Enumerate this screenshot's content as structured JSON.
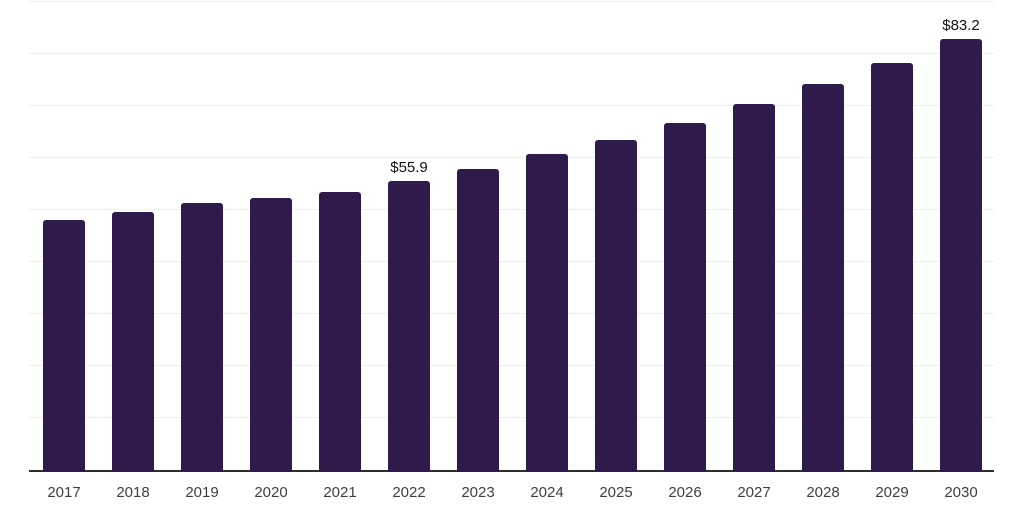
{
  "chart_data": {
    "type": "bar",
    "title": "",
    "xlabel": "",
    "ylabel": "",
    "categories": [
      "2017",
      "2018",
      "2019",
      "2020",
      "2021",
      "2022",
      "2023",
      "2024",
      "2025",
      "2026",
      "2027",
      "2028",
      "2029",
      "2030"
    ],
    "values": [
      48.3,
      50.0,
      51.7,
      52.6,
      53.7,
      55.9,
      58.1,
      61.1,
      63.7,
      67.1,
      70.7,
      74.6,
      78.5,
      83.2
    ],
    "value_labels": {
      "2022": "$55.9",
      "2030": "$83.2"
    },
    "ylim": [
      0,
      90
    ],
    "grid_step": 10,
    "grid": true,
    "legend_position": "none",
    "y_axis_tick_labels_visible": false,
    "colors": {
      "bar": "#2f1a4c",
      "gridline": "#efefef",
      "axis": "#2e2e2e",
      "x_tick_label": "#404040",
      "value_label": "#131313",
      "background": "#ffffff"
    }
  }
}
